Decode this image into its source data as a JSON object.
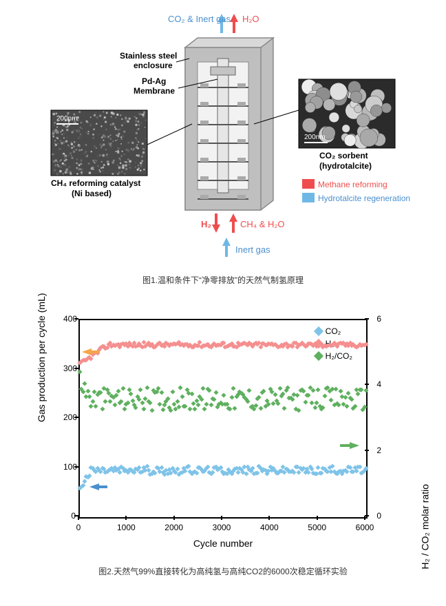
{
  "fig1": {
    "labels": {
      "top_left": "CO₂ & Inert gas",
      "top_right": "H₂O",
      "enclosure_l1": "Stainless steel",
      "enclosure_l2": "enclosure",
      "membrane_l1": "Pd-Ag",
      "membrane_l2": "Membrane",
      "catalyst_l1": "CH₄ reforming catalyst",
      "catalyst_l2": "(Ni based)",
      "sorbent_l1": "CO₂ sorbent",
      "sorbent_l2": "(hydrotalcite)",
      "methane_reforming": "Methane reforming",
      "hydrotalcite_regen": "Hydrotalcite regeneration",
      "bottom_h2": "H₂",
      "bottom_ch4": "CH₄ & H₂O",
      "bottom_inert": "Inert gas",
      "scalebar": "200nm"
    },
    "colors": {
      "methane_red": "#ef4d4d",
      "hydro_blue": "#6fb8e6",
      "steel_grey": "#bfbfbf",
      "steel_light": "#d8d8d8",
      "steel_dark": "#8a8a8a",
      "text_dark": "#222222",
      "text_blue": "#4a8fcf"
    },
    "caption": "图1.温和条件下“净零排放”的天然气制氢原理"
  },
  "fig2": {
    "type": "scatter",
    "xlabel": "Cycle number",
    "ylabel_left": "Gas production per cycle (mL)",
    "ylabel_right": "H₂ / CO₂ molar ratio",
    "xlim": [
      0,
      6000
    ],
    "xtick_step": 1000,
    "ylim_left": [
      0,
      400
    ],
    "ytick_left": [
      0,
      100,
      200,
      300,
      400
    ],
    "ylim_right": [
      0,
      6
    ],
    "ytick_right": [
      0,
      2,
      4,
      6
    ],
    "legend": [
      {
        "label": "CO₂",
        "color": "#7fc3e8"
      },
      {
        "label": "H₂",
        "color": "#f58f8f"
      },
      {
        "label": "H₂/CO₂",
        "color": "#5fb05f"
      }
    ],
    "series": {
      "CO2": {
        "color": "#7fc3e8",
        "baseline": 95,
        "noise": 8,
        "n": 180,
        "startup": {
          "until": 250,
          "from": 60
        }
      },
      "H2": {
        "color": "#f58f8f",
        "baseline": 350,
        "noise": 5,
        "n": 180,
        "startup": {
          "until": 600,
          "from": 310
        }
      },
      "ratio": {
        "color": "#5fb05f",
        "baseline": 3.6,
        "noise": 0.35,
        "n": 180,
        "axis": "right",
        "startup": {
          "until": 200,
          "from": 4.2
        }
      }
    },
    "marker": "diamond",
    "marker_size": 5,
    "background_color": "#ffffff",
    "caption": "图2.天然气99%直接转化为高纯氢与高纯CO2的6000次稳定循环实验",
    "arrows": [
      {
        "x": 50,
        "y_left": 335,
        "dir": "left",
        "color": "#f5a54a"
      },
      {
        "x": 200,
        "y_left": 62,
        "dir": "left",
        "color": "#4a8fcf"
      },
      {
        "x": 5850,
        "y_left": 145,
        "dir": "right",
        "color": "#5fb05f"
      }
    ]
  }
}
